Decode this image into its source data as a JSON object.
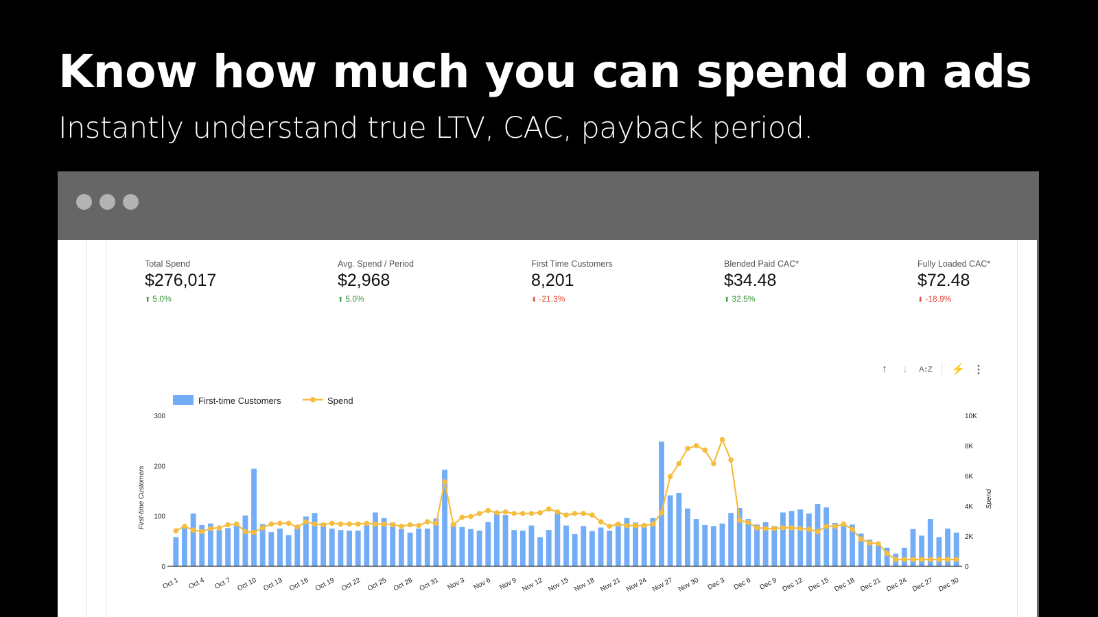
{
  "hero": {
    "title": "Know how much you can spend on ads",
    "subtitle": "Instantly understand true LTV, CAC, payback period."
  },
  "window": {
    "controls": [
      "dot",
      "dot",
      "dot"
    ]
  },
  "kpis": [
    {
      "label": "Total Spend",
      "value": "$276,017",
      "delta": "5.0%",
      "direction": "up"
    },
    {
      "label": "Avg. Spend / Period",
      "value": "$2,968",
      "delta": "5.0%",
      "direction": "up"
    },
    {
      "label": "First Time Customers",
      "value": "8,201",
      "delta": "-21.3%",
      "direction": "down"
    },
    {
      "label": "Blended Paid CAC*",
      "value": "$34.48",
      "delta": "32.5%",
      "direction": "up"
    },
    {
      "label": "Fully Loaded CAC*",
      "value": "$72.48",
      "delta": "-18.9%",
      "direction": "down"
    }
  ],
  "toolbar": {
    "sort_asc": "↑",
    "sort_desc": "↓",
    "sort_az": "A↕Z",
    "quick_action": "⚡",
    "more": "⋮"
  },
  "colors": {
    "bar": "#73acf7",
    "line": "#f5bd3d",
    "up": "#3d9a3d",
    "down": "#e0503e"
  },
  "chart_data": {
    "type": "bar",
    "title": "",
    "legend": [
      "First-time Customers",
      "Spend"
    ],
    "legend_position": "top-left",
    "xlabel": "",
    "ylabel": "First-time Customers",
    "ylabel_right": "Spend",
    "ylim": [
      0,
      300
    ],
    "ylim_right": [
      0,
      10000
    ],
    "yticks": [
      "0",
      "100",
      "200",
      "300"
    ],
    "yticks_right": [
      "0",
      "2K",
      "4K",
      "6K",
      "8K",
      "10K"
    ],
    "grid": false,
    "x_tick_labels": [
      "Oct 1",
      "Oct 4",
      "Oct 7",
      "Oct 10",
      "Oct 13",
      "Oct 16",
      "Oct 19",
      "Oct 22",
      "Oct 25",
      "Oct 28",
      "Oct 31",
      "Nov 3",
      "Nov 6",
      "Nov 9",
      "Nov 12",
      "Nov 15",
      "Nov 18",
      "Nov 21",
      "Nov 24",
      "Nov 27",
      "Nov 30",
      "Dec 3",
      "Dec 6",
      "Dec 9",
      "Dec 12",
      "Dec 15",
      "Dec 18",
      "Dec 21",
      "Dec 24",
      "Dec 27",
      "Dec 30"
    ],
    "x_start": "Oct 1",
    "x_end": "Dec 31",
    "series": [
      {
        "name": "First-time Customers",
        "type": "bar",
        "axis": "left",
        "values": [
          58,
          78,
          105,
          82,
          85,
          72,
          76,
          82,
          101,
          194,
          84,
          68,
          75,
          62,
          78,
          99,
          106,
          86,
          75,
          72,
          71,
          71,
          82,
          107,
          96,
          87,
          74,
          67,
          75,
          75,
          95,
          192,
          86,
          78,
          74,
          71,
          88,
          108,
          102,
          72,
          71,
          81,
          58,
          72,
          106,
          81,
          64,
          80,
          70,
          77,
          71,
          86,
          96,
          87,
          84,
          96,
          248,
          141,
          146,
          115,
          94,
          82,
          80,
          85,
          106,
          116,
          94,
          83,
          88,
          80,
          107,
          110,
          113,
          105,
          124,
          117,
          86,
          82,
          83,
          65,
          53,
          42,
          37,
          25,
          37,
          74,
          61,
          94,
          58,
          75,
          67
        ]
      },
      {
        "name": "Spend",
        "type": "line",
        "axis": "right",
        "values": [
          2350,
          2650,
          2400,
          2300,
          2500,
          2550,
          2750,
          2800,
          2300,
          2250,
          2550,
          2800,
          2850,
          2850,
          2600,
          2950,
          2800,
          2750,
          2850,
          2800,
          2800,
          2800,
          2850,
          2800,
          2800,
          2750,
          2650,
          2750,
          2700,
          2950,
          2850,
          5600,
          2750,
          3250,
          3300,
          3500,
          3700,
          3550,
          3600,
          3500,
          3500,
          3500,
          3550,
          3800,
          3600,
          3400,
          3500,
          3500,
          3400,
          2950,
          2650,
          2800,
          2700,
          2700,
          2700,
          2800,
          3550,
          5950,
          6800,
          7800,
          8000,
          7700,
          6800,
          8400,
          7050,
          3050,
          2900,
          2550,
          2500,
          2500,
          2550,
          2550,
          2500,
          2450,
          2300,
          2650,
          2650,
          2800,
          2450,
          1800,
          1550,
          1500,
          850,
          450,
          450,
          450,
          450,
          450,
          450,
          450,
          450
        ]
      }
    ]
  }
}
